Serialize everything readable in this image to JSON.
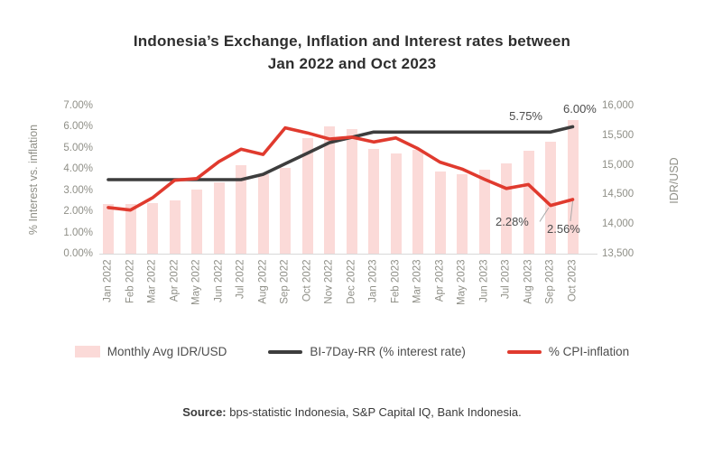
{
  "title": {
    "line1": "Indonesia’s Exchange, Inflation and Interest rates between",
    "line2": "Jan 2022 and Oct 2023"
  },
  "colors": {
    "bar": "#fbdad8",
    "interest_line": "#3d3d3d",
    "cpi_line": "#e03a2e",
    "axis_text": "#8f8f87",
    "title_text": "#2e2e2e"
  },
  "chart_data": {
    "type": "bar+line combo",
    "categories": [
      "Jan 2022",
      "Feb 2022",
      "Mar 2022",
      "Apr 2022",
      "May 2022",
      "Jun 2022",
      "Jul 2022",
      "Aug 2022",
      "Sep 2022",
      "Oct 2022",
      "Nov 2022",
      "Dec 2022",
      "Jan 2023",
      "Feb 2023",
      "Mar 2023",
      "Apr 2023",
      "May 2023",
      "Jun 2023",
      "Jul 2023",
      "Aug 2023",
      "Sep 2023",
      "Oct 2023"
    ],
    "series": [
      {
        "name": "Monthly Avg IDR/USD",
        "type": "bar",
        "axis": "right",
        "values": [
          14336,
          14340,
          14348,
          14394,
          14580,
          14697,
          14990,
          14843,
          14951,
          15450,
          15650,
          15600,
          15268,
          15185,
          15260,
          14880,
          14835,
          14923,
          15031,
          15242,
          15385,
          15750
        ]
      },
      {
        "name": "BI-7Day-RR (% interest rate)",
        "type": "line",
        "axis": "left",
        "values": [
          3.5,
          3.5,
          3.5,
          3.5,
          3.5,
          3.5,
          3.5,
          3.75,
          4.25,
          4.75,
          5.25,
          5.5,
          5.75,
          5.75,
          5.75,
          5.75,
          5.75,
          5.75,
          5.75,
          5.75,
          5.75,
          6.0
        ]
      },
      {
        "name": "% CPI-inflation",
        "type": "line",
        "axis": "left",
        "values": [
          2.18,
          2.06,
          2.64,
          3.47,
          3.55,
          4.35,
          4.94,
          4.69,
          5.95,
          5.71,
          5.42,
          5.51,
          5.28,
          5.47,
          4.97,
          4.33,
          4.0,
          3.52,
          3.08,
          3.27,
          2.28,
          2.56
        ]
      }
    ],
    "left_axis": {
      "title": "% Interest vs. inflation",
      "min": 0,
      "max": 7,
      "tick_step": 1,
      "ticks": [
        "7.00%",
        "6.00%",
        "5.00%",
        "4.00%",
        "3.00%",
        "2.00%",
        "1.00%",
        "0.00%"
      ]
    },
    "right_axis": {
      "title": "IDR/USD",
      "min": 13500,
      "max": 16000,
      "tick_step": 500,
      "ticks": [
        "16,000",
        "15,500",
        "15,000",
        "14,500",
        "14,000",
        "13,500"
      ]
    },
    "grid": "off",
    "legend_position": "bottom",
    "annotations": [
      {
        "text": "5.75%",
        "series": "BI-7Day-RR (% interest rate)",
        "month": "Sep 2023"
      },
      {
        "text": "6.00%",
        "series": "BI-7Day-RR (% interest rate)",
        "month": "Oct 2023"
      },
      {
        "text": "2.28%",
        "series": "% CPI-inflation",
        "month": "Sep 2023"
      },
      {
        "text": "2.56%",
        "series": "% CPI-inflation",
        "month": "Oct 2023"
      }
    ]
  },
  "legend": {
    "items": [
      {
        "label": "Monthly Avg IDR/USD",
        "swatch": "bar-swatch"
      },
      {
        "label": "BI-7Day-RR (% interest rate)",
        "swatch": "dark-line-swatch"
      },
      {
        "label": "% CPI-inflation",
        "swatch": "red-line-swatch"
      }
    ]
  },
  "source": {
    "prefix": "Source:",
    "text": " bps-statistic Indonesia, S&P Capital IQ, Bank Indonesia."
  }
}
